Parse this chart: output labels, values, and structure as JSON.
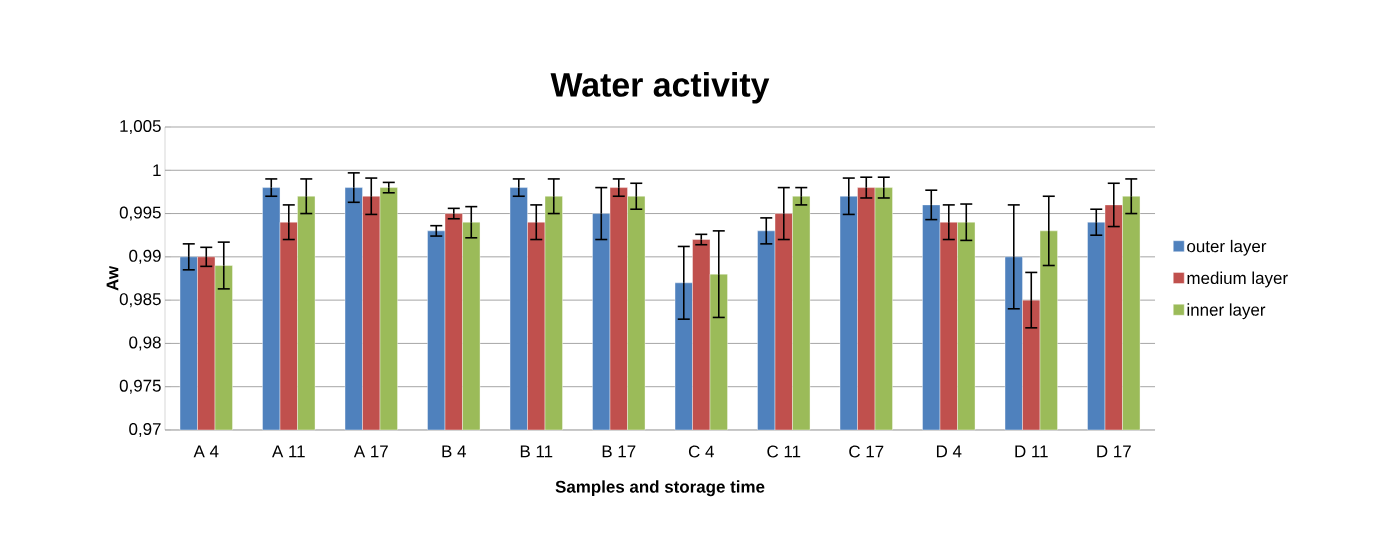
{
  "chart_data": {
    "type": "bar",
    "title": "Water activity",
    "xlabel": "Samples and storage time",
    "ylabel": "Aw",
    "categories": [
      "A 4",
      "A 11",
      "A 17",
      "B 4",
      "B  11",
      "B 17",
      "C 4",
      "C 11",
      "C 17",
      "D 4",
      "D 11",
      "D 17"
    ],
    "series": [
      {
        "name": "outer layer",
        "color": "#4f81bd",
        "values": [
          0.99,
          0.998,
          0.998,
          0.993,
          0.998,
          0.995,
          0.987,
          0.993,
          0.997,
          0.996,
          0.99,
          0.994
        ],
        "errors": [
          0.0015,
          0.001,
          0.0017,
          0.0006,
          0.001,
          0.003,
          0.0042,
          0.0015,
          0.0021,
          0.0017,
          0.006,
          0.0015
        ]
      },
      {
        "name": "medium layer",
        "color": "#c0504d",
        "values": [
          0.99,
          0.994,
          0.997,
          0.995,
          0.994,
          0.998,
          0.992,
          0.995,
          0.998,
          0.994,
          0.985,
          0.996
        ],
        "errors": [
          0.0011,
          0.002,
          0.0021,
          0.0006,
          0.002,
          0.001,
          0.0006,
          0.003,
          0.0012,
          0.002,
          0.0032,
          0.0025
        ]
      },
      {
        "name": "inner layer",
        "color": "#9bbb59",
        "values": [
          0.989,
          0.997,
          0.998,
          0.994,
          0.997,
          0.997,
          0.988,
          0.997,
          0.998,
          0.994,
          0.993,
          0.997
        ],
        "errors": [
          0.0027,
          0.002,
          0.0006,
          0.0018,
          0.002,
          0.0015,
          0.005,
          0.001,
          0.0012,
          0.0021,
          0.004,
          0.002
        ]
      }
    ],
    "ylim": [
      0.97,
      1.005
    ],
    "yticks": [
      {
        "value": 0.97,
        "label": "0,97"
      },
      {
        "value": 0.975,
        "label": "0,975"
      },
      {
        "value": 0.98,
        "label": "0,98"
      },
      {
        "value": 0.985,
        "label": "0,985"
      },
      {
        "value": 0.99,
        "label": "0,99"
      },
      {
        "value": 0.995,
        "label": "0,995"
      },
      1,
      {
        "value": 1.005,
        "label": "1,005"
      }
    ],
    "grid": "y",
    "legend": "right"
  }
}
